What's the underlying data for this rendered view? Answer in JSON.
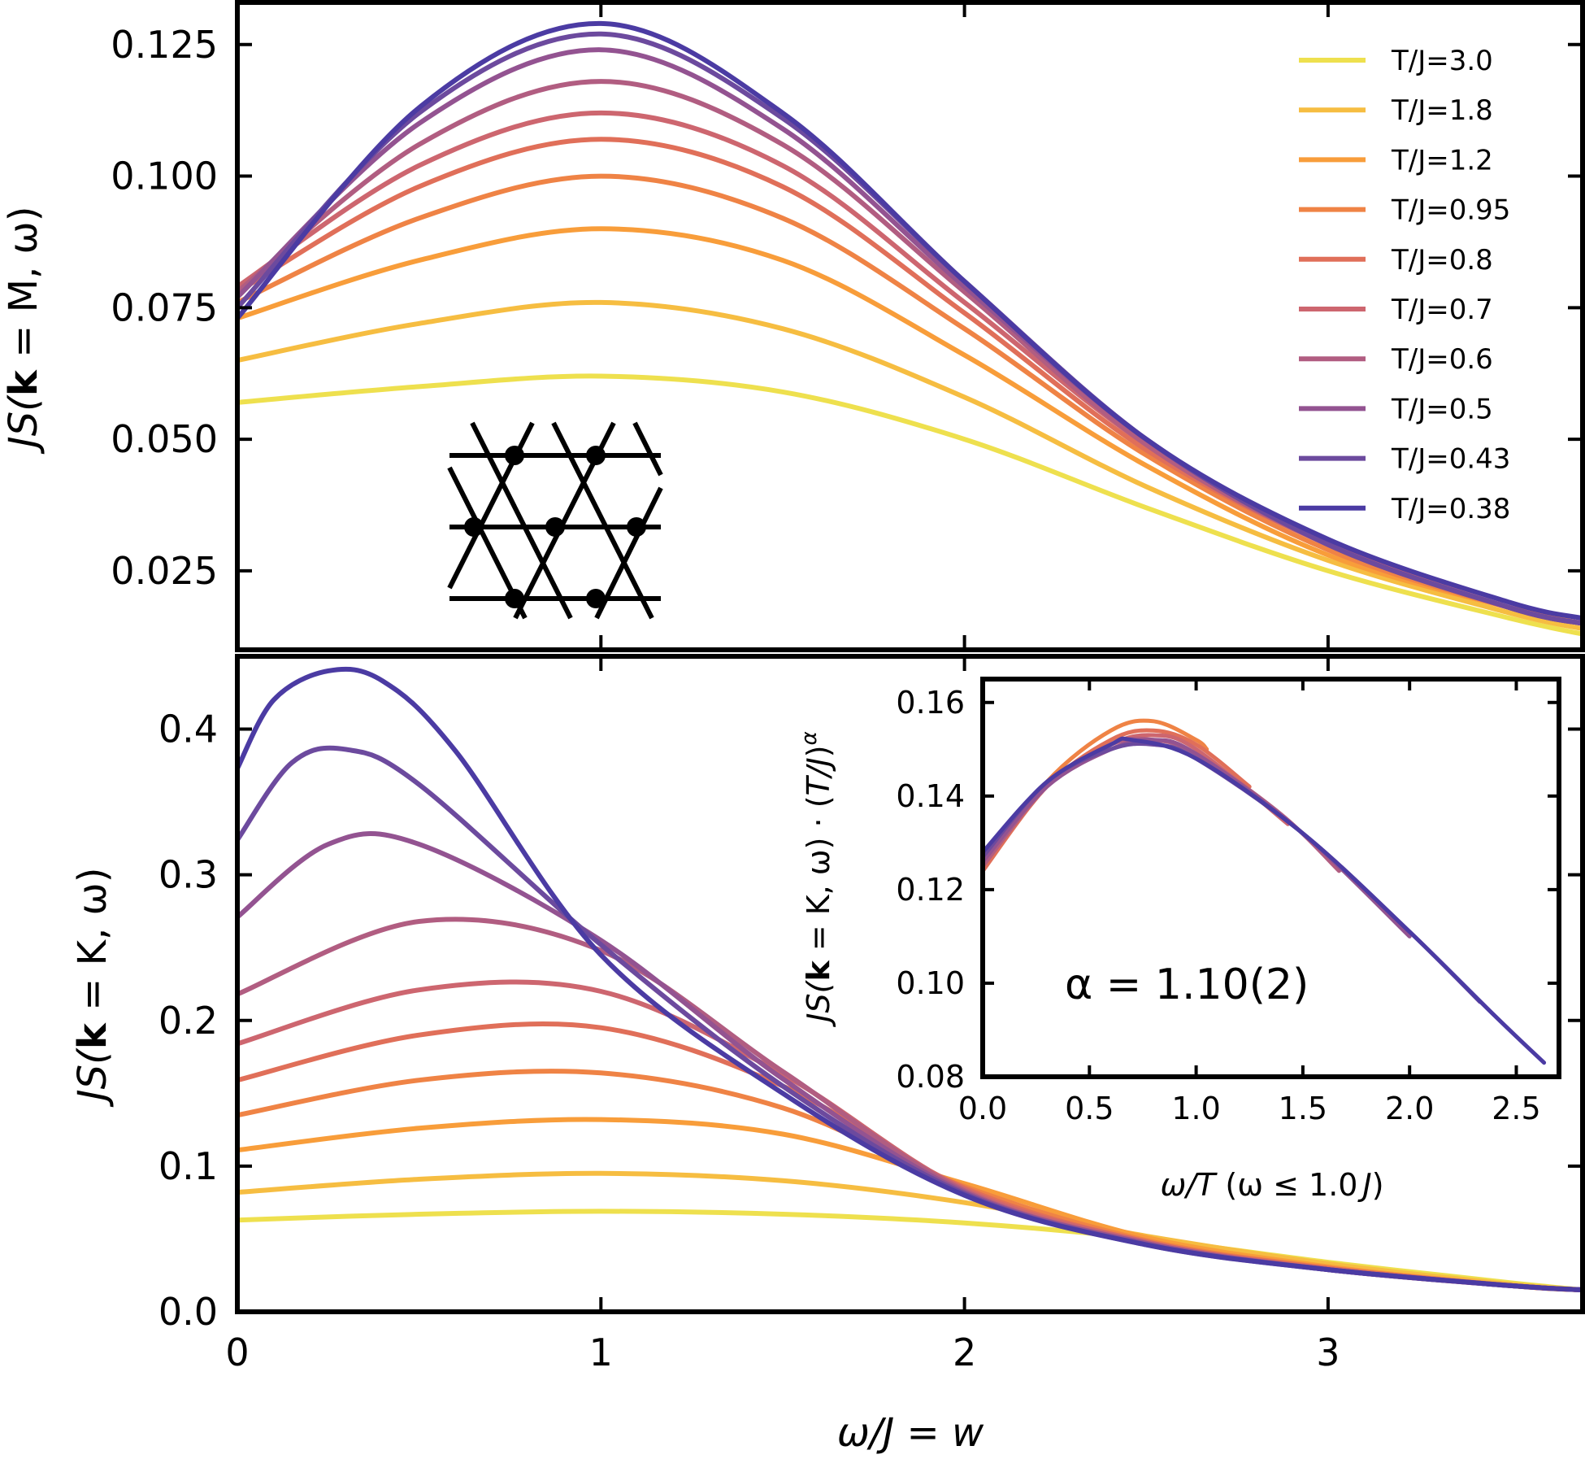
{
  "figure_title": "",
  "chart_data": [
    {
      "id": "top",
      "type": "line",
      "title": "",
      "xlabel": "",
      "ylabel": "JS(k = M, ω)",
      "ylabel_parts": {
        "pre": "J",
        "S": "S(",
        "k": "k",
        "post": " = M, ω)"
      },
      "xlim": [
        0,
        3.7
      ],
      "ylim": [
        0.01,
        0.133
      ],
      "xticks": [
        1,
        2,
        3
      ],
      "yticks": [
        0.025,
        0.05,
        0.075,
        0.1,
        0.125
      ],
      "ytick_labels": [
        "0.025",
        "0.050",
        "0.075",
        "0.100",
        "0.125"
      ],
      "legend_position": "top-right",
      "series": [
        {
          "name": "T/J=3.0",
          "color": "#eee04e",
          "x": [
            0,
            0.5,
            1.0,
            1.5,
            2.0,
            2.5,
            3.0,
            3.5,
            3.7
          ],
          "values": [
            0.057,
            0.06,
            0.062,
            0.059,
            0.05,
            0.037,
            0.025,
            0.016,
            0.013
          ]
        },
        {
          "name": "T/J=1.8",
          "color": "#f6bd41",
          "x": [
            0,
            0.5,
            1.0,
            1.5,
            2.0,
            2.5,
            3.0,
            3.5,
            3.7
          ],
          "values": [
            0.065,
            0.072,
            0.076,
            0.071,
            0.058,
            0.041,
            0.027,
            0.017,
            0.014
          ]
        },
        {
          "name": "T/J=1.2",
          "color": "#f89d3a",
          "x": [
            0,
            0.5,
            1.0,
            1.5,
            2.0,
            2.5,
            3.0,
            3.5,
            3.7
          ],
          "values": [
            0.073,
            0.084,
            0.09,
            0.084,
            0.066,
            0.045,
            0.028,
            0.018,
            0.015
          ]
        },
        {
          "name": "T/J=0.95",
          "color": "#ef8345",
          "x": [
            0,
            0.5,
            1.0,
            1.5,
            2.0,
            2.5,
            3.0,
            3.5,
            3.7
          ],
          "values": [
            0.076,
            0.092,
            0.1,
            0.092,
            0.071,
            0.047,
            0.029,
            0.018,
            0.015
          ]
        },
        {
          "name": "T/J=0.8",
          "color": "#e06f59",
          "x": [
            0,
            0.5,
            1.0,
            1.5,
            2.0,
            2.5,
            3.0,
            3.5,
            3.7
          ],
          "values": [
            0.078,
            0.098,
            0.107,
            0.098,
            0.074,
            0.048,
            0.03,
            0.018,
            0.015
          ]
        },
        {
          "name": "T/J=0.7",
          "color": "#cd666f",
          "x": [
            0,
            0.5,
            1.0,
            1.5,
            2.0,
            2.5,
            3.0,
            3.5,
            3.7
          ],
          "values": [
            0.079,
            0.102,
            0.112,
            0.102,
            0.076,
            0.049,
            0.03,
            0.018,
            0.015
          ]
        },
        {
          "name": "T/J=0.6",
          "color": "#b15d81",
          "x": [
            0,
            0.5,
            1.0,
            1.5,
            2.0,
            2.5,
            3.0,
            3.5,
            3.7
          ],
          "values": [
            0.078,
            0.106,
            0.118,
            0.106,
            0.078,
            0.049,
            0.03,
            0.018,
            0.015
          ]
        },
        {
          "name": "T/J=0.5",
          "color": "#935391",
          "x": [
            0,
            0.5,
            1.0,
            1.5,
            2.0,
            2.5,
            3.0,
            3.5,
            3.7
          ],
          "values": [
            0.077,
            0.11,
            0.124,
            0.109,
            0.079,
            0.05,
            0.03,
            0.018,
            0.015
          ]
        },
        {
          "name": "T/J=0.43",
          "color": "#6c4a9e",
          "x": [
            0,
            0.5,
            1.0,
            1.5,
            2.0,
            2.5,
            3.0,
            3.5,
            3.7
          ],
          "values": [
            0.075,
            0.112,
            0.127,
            0.111,
            0.08,
            0.05,
            0.03,
            0.018,
            0.015
          ]
        },
        {
          "name": "T/J=0.38",
          "color": "#4b3ba3",
          "x": [
            0,
            0.5,
            1.0,
            1.5,
            2.0,
            2.5,
            3.0,
            3.5,
            3.7
          ],
          "values": [
            0.073,
            0.113,
            0.129,
            0.112,
            0.08,
            0.05,
            0.031,
            0.019,
            0.016
          ]
        }
      ]
    },
    {
      "id": "bottom",
      "type": "line",
      "title": "",
      "xlabel": "ω/J = w",
      "xlabel_parts": {
        "omega": "ω/",
        "J": "J",
        "eq": " = ",
        "w": "w"
      },
      "ylabel": "JS(k = K, ω)",
      "ylabel_parts": {
        "pre": "J",
        "S": "S(",
        "k": "k",
        "post": " = K, ω)"
      },
      "xlim": [
        0,
        3.7
      ],
      "ylim": [
        0,
        0.45
      ],
      "xticks": [
        0,
        1,
        2,
        3
      ],
      "xtick_labels": [
        "0",
        "1",
        "2",
        "3"
      ],
      "yticks": [
        0.0,
        0.1,
        0.2,
        0.3,
        0.4
      ],
      "ytick_labels": [
        "0.0",
        "0.1",
        "0.2",
        "0.3",
        "0.4"
      ],
      "series": [
        {
          "name": "T/J=3.0",
          "color": "#eee04e",
          "x": [
            0,
            0.5,
            1.0,
            1.5,
            2.0,
            2.5,
            3.0,
            3.5,
            3.7
          ],
          "values": [
            0.063,
            0.067,
            0.069,
            0.067,
            0.061,
            0.05,
            0.034,
            0.02,
            0.015
          ]
        },
        {
          "name": "T/J=1.8",
          "color": "#f6bd41",
          "x": [
            0,
            0.5,
            1.0,
            1.5,
            2.0,
            2.5,
            3.0,
            3.5,
            3.7
          ],
          "values": [
            0.082,
            0.091,
            0.095,
            0.09,
            0.075,
            0.052,
            0.033,
            0.019,
            0.015
          ]
        },
        {
          "name": "T/J=1.2",
          "color": "#f89d3a",
          "x": [
            0,
            0.5,
            1.0,
            1.5,
            2.0,
            2.5,
            3.0,
            3.5,
            3.7
          ],
          "values": [
            0.111,
            0.126,
            0.132,
            0.122,
            0.088,
            0.051,
            0.031,
            0.018,
            0.015
          ]
        },
        {
          "name": "T/J=0.95",
          "color": "#ef8345",
          "x": [
            0,
            0.5,
            1.0,
            1.5,
            2.0,
            2.5,
            3.0,
            3.5,
            3.7
          ],
          "values": [
            0.135,
            0.159,
            0.164,
            0.14,
            0.086,
            0.049,
            0.03,
            0.018,
            0.015
          ]
        },
        {
          "name": "T/J=0.8",
          "color": "#e06f59",
          "x": [
            0,
            0.5,
            1.0,
            1.5,
            2.0,
            2.5,
            3.0,
            3.5,
            3.7
          ],
          "values": [
            0.159,
            0.19,
            0.195,
            0.155,
            0.085,
            0.048,
            0.03,
            0.018,
            0.015
          ]
        },
        {
          "name": "T/J=0.7",
          "color": "#cd666f",
          "x": [
            0,
            0.5,
            1.0,
            1.5,
            2.0,
            2.5,
            3.0,
            3.5,
            3.7
          ],
          "values": [
            0.184,
            0.221,
            0.22,
            0.163,
            0.084,
            0.048,
            0.029,
            0.018,
            0.015
          ]
        },
        {
          "name": "T/J=0.6",
          "color": "#b15d81",
          "x": [
            0,
            0.5,
            1.0,
            1.5,
            2.0,
            2.5,
            3.0,
            3.5,
            3.7
          ],
          "values": [
            0.218,
            0.268,
            0.248,
            0.165,
            0.083,
            0.047,
            0.029,
            0.018,
            0.015
          ]
        },
        {
          "name": "T/J=0.5",
          "color": "#935391",
          "x": [
            0,
            0.25,
            0.5,
            1.0,
            1.5,
            2.0,
            2.5,
            3.0,
            3.5,
            3.7
          ],
          "values": [
            0.271,
            0.321,
            0.321,
            0.255,
            0.16,
            0.082,
            0.047,
            0.029,
            0.018,
            0.015
          ]
        },
        {
          "name": "T/J=0.43",
          "color": "#6c4a9e",
          "x": [
            0,
            0.15,
            0.3,
            0.5,
            1.0,
            1.5,
            2.0,
            2.5,
            3.0,
            3.5,
            3.7
          ],
          "values": [
            0.324,
            0.377,
            0.386,
            0.362,
            0.252,
            0.155,
            0.081,
            0.046,
            0.029,
            0.018,
            0.015
          ]
        },
        {
          "name": "T/J=0.38",
          "color": "#4b3ba3",
          "x": [
            0,
            0.1,
            0.25,
            0.4,
            0.6,
            1.0,
            1.5,
            2.0,
            2.5,
            3.0,
            3.5,
            3.7
          ],
          "values": [
            0.373,
            0.42,
            0.44,
            0.433,
            0.385,
            0.245,
            0.15,
            0.08,
            0.046,
            0.029,
            0.018,
            0.015
          ]
        }
      ]
    },
    {
      "id": "inset",
      "type": "line",
      "title": "",
      "xlabel": "ω/T  (ω ≤ 1.0 J)",
      "xlabel_parts": {
        "omega": "ω/",
        "T": "T",
        "mid": "  (ω ≤ 1.0",
        "J": "J",
        "close": ")"
      },
      "ylabel": "JS(k = K, ω) · (T/J)^α",
      "ylabel_parts": {
        "pre": "J",
        "S": "S(",
        "k": "k",
        "post": " = K, ω) · (",
        "T": "T/J",
        "close": ")",
        "sup": "α"
      },
      "annotation": "α = 1.10(2)",
      "xlim": [
        0,
        2.7
      ],
      "ylim": [
        0.08,
        0.165
      ],
      "xticks": [
        0,
        0.5,
        1.0,
        1.5,
        2.0,
        2.5
      ],
      "xtick_labels": [
        "0.0",
        "0.5",
        "1.0",
        "1.5",
        "2.0",
        "2.5"
      ],
      "yticks": [
        0.08,
        0.1,
        0.12,
        0.14,
        0.16
      ],
      "ytick_labels": [
        "0.08",
        "0.10",
        "0.12",
        "0.14",
        "0.16"
      ],
      "series": [
        {
          "name": "T/J=0.95",
          "color": "#ef8345",
          "x": [
            0,
            0.3,
            0.6,
            0.8,
            1.0,
            1.05
          ],
          "values": [
            0.124,
            0.143,
            0.154,
            0.156,
            0.152,
            0.15
          ]
        },
        {
          "name": "T/J=0.8",
          "color": "#e06f59",
          "x": [
            0,
            0.3,
            0.6,
            0.8,
            1.0,
            1.25
          ],
          "values": [
            0.124,
            0.142,
            0.152,
            0.154,
            0.151,
            0.142
          ]
        },
        {
          "name": "T/J=0.7",
          "color": "#cd666f",
          "x": [
            0,
            0.3,
            0.6,
            0.8,
            1.0,
            1.43
          ],
          "values": [
            0.125,
            0.142,
            0.151,
            0.153,
            0.15,
            0.134
          ]
        },
        {
          "name": "T/J=0.6",
          "color": "#b15d81",
          "x": [
            0,
            0.3,
            0.6,
            0.8,
            1.0,
            1.4,
            1.67
          ],
          "values": [
            0.125,
            0.142,
            0.151,
            0.152,
            0.149,
            0.136,
            0.124
          ]
        },
        {
          "name": "T/J=0.5",
          "color": "#935391",
          "x": [
            0,
            0.3,
            0.6,
            0.8,
            1.0,
            1.5,
            2.0
          ],
          "values": [
            0.126,
            0.142,
            0.15,
            0.152,
            0.149,
            0.132,
            0.11
          ]
        },
        {
          "name": "T/J=0.43",
          "color": "#6c4a9e",
          "x": [
            0,
            0.3,
            0.6,
            0.8,
            1.0,
            1.5,
            2.0,
            2.33
          ],
          "values": [
            0.127,
            0.143,
            0.15,
            0.151,
            0.148,
            0.132,
            0.111,
            0.096
          ]
        },
        {
          "name": "T/J=0.38",
          "color": "#4b3ba3",
          "x": [
            0,
            0.3,
            0.6,
            0.7,
            1.0,
            1.5,
            2.0,
            2.4,
            2.63
          ],
          "values": [
            0.128,
            0.143,
            0.151,
            0.152,
            0.148,
            0.132,
            0.111,
            0.093,
            0.083
          ]
        }
      ]
    }
  ]
}
